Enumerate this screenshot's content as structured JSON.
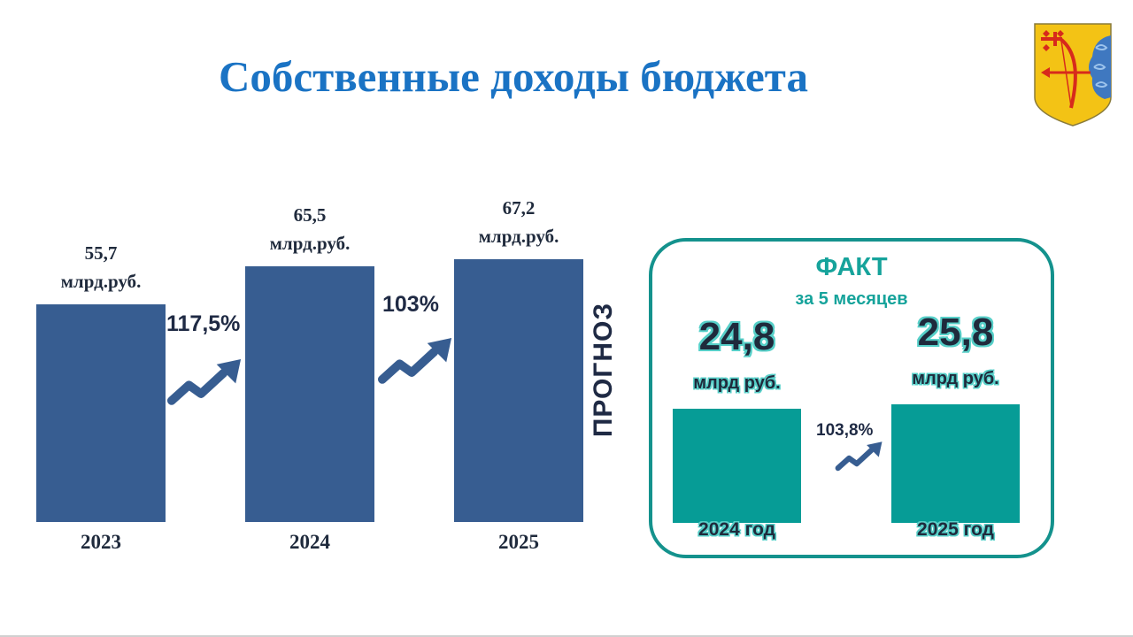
{
  "title": "Собственные доходы бюджета",
  "forecast_label": "ПРОГНОЗ",
  "chart_data": [
    {
      "type": "bar",
      "categories": [
        "2023",
        "2024",
        "2025"
      ],
      "values": [
        55.7,
        65.5,
        67.2
      ],
      "value_labels": [
        {
          "value": "55,7",
          "unit": "млрд.руб."
        },
        {
          "value": "65,5",
          "unit": "млрд.руб."
        },
        {
          "value": "67,2",
          "unit": "млрд.руб."
        }
      ],
      "growth_labels": [
        "117,5%",
        "103%"
      ],
      "color": "#375d91"
    },
    {
      "type": "bar",
      "title": "ФАКТ",
      "subtitle": "за 5 месяцев",
      "categories": [
        "2024 год",
        "2025 год"
      ],
      "values": [
        24.8,
        25.8
      ],
      "value_labels": [
        {
          "value": "24,8",
          "unit": "млрд руб."
        },
        {
          "value": "25,8",
          "unit": "млрд руб."
        }
      ],
      "growth_labels": [
        "103,8%"
      ],
      "color": "#069c96",
      "frame_color": "#14928d"
    }
  ],
  "emblem": {
    "icon": "kirov-coat-of-arms-icon",
    "colors": {
      "shield": "#f3c315",
      "cloud": "#3f78c0",
      "arrow": "#d72a1c"
    }
  }
}
